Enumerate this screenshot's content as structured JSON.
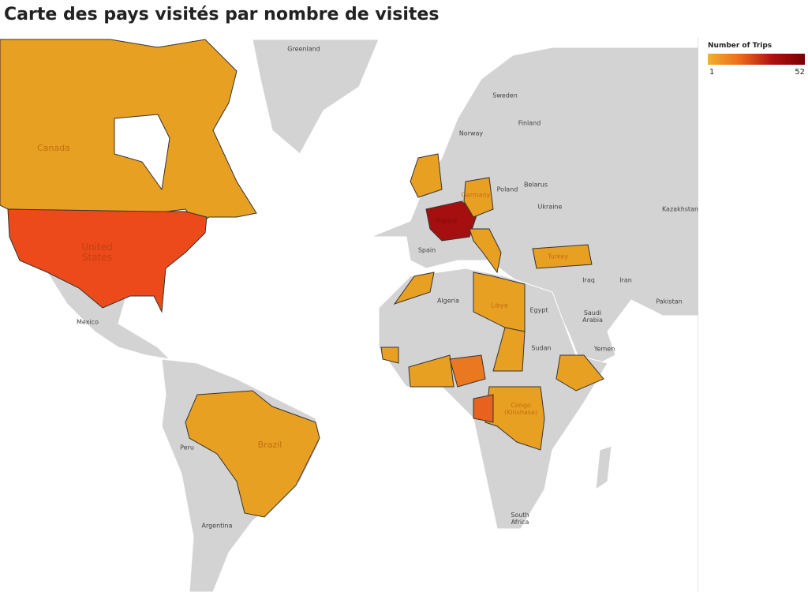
{
  "header": {
    "title": "Carte des pays visités par nombre de visites"
  },
  "legend": {
    "title": "Number of Trips",
    "min": 1,
    "max": 52
  },
  "map": {
    "labels": [
      "Greenland",
      "Sweden",
      "Finland",
      "Norway",
      "Canada",
      "Germany",
      "Poland",
      "Belarus",
      "Ukraine",
      "Kazakhstan",
      "France",
      "United States",
      "Spain",
      "Turkey",
      "Iraq",
      "Iran",
      "Algeria",
      "Libya",
      "Egypt",
      "Pakistan",
      "Saudi Arabia",
      "Mexico",
      "Sudan",
      "Yemen",
      "Peru",
      "Brazil",
      "Congo (Kinshasa)",
      "Argentina",
      "South Africa"
    ]
  }
}
